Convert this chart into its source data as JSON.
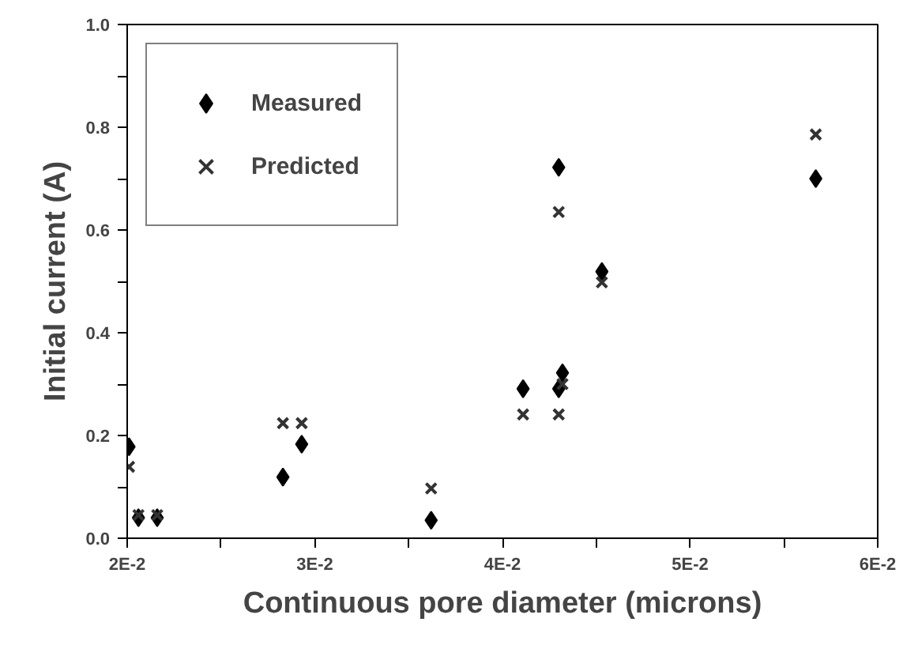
{
  "chart_data": {
    "type": "scatter",
    "xlabel": "Continuous pore diameter (microns)",
    "ylabel": "Initial current (A)",
    "xlim": [
      0.02,
      0.06
    ],
    "ylim": [
      0,
      1
    ],
    "xticks": [
      {
        "value": 0.02,
        "label": "2E-2"
      },
      {
        "value": 0.025,
        "label": null
      },
      {
        "value": 0.03,
        "label": "3E-2"
      },
      {
        "value": 0.035,
        "label": null
      },
      {
        "value": 0.04,
        "label": "4E-2"
      },
      {
        "value": 0.045,
        "label": null
      },
      {
        "value": 0.05,
        "label": "5E-2"
      },
      {
        "value": 0.055,
        "label": null
      },
      {
        "value": 0.06,
        "label": "6E-2"
      }
    ],
    "yticks": [
      {
        "value": 0,
        "label": "0.0"
      },
      {
        "value": 0.1,
        "label": null
      },
      {
        "value": 0.2,
        "label": "0.2"
      },
      {
        "value": 0.3,
        "label": null
      },
      {
        "value": 0.4,
        "label": "0.4"
      },
      {
        "value": 0.5,
        "label": null
      },
      {
        "value": 0.6,
        "label": "0.6"
      },
      {
        "value": 0.7,
        "label": null
      },
      {
        "value": 0.8,
        "label": "0.8"
      },
      {
        "value": 0.9,
        "label": null
      },
      {
        "value": 1,
        "label": "1.0"
      }
    ],
    "grid": false,
    "legend": "top left",
    "series": [
      {
        "name": "Measured",
        "color": "#000000",
        "marker": "diamond",
        "x": [
          0.0201,
          0.0206,
          0.0216,
          0.0283,
          0.0293,
          0.0362,
          0.0411,
          0.043,
          0.0432,
          0.043,
          0.0453,
          0.0567
        ],
        "values": [
          0.178,
          0.04,
          0.04,
          0.119,
          0.183,
          0.035,
          0.291,
          0.722,
          0.322,
          0.291,
          0.519,
          0.7
        ]
      },
      {
        "name": "Predicted",
        "color": "#333333",
        "marker": "cross",
        "x": [
          0.0201,
          0.0206,
          0.0216,
          0.0283,
          0.0293,
          0.0362,
          0.0411,
          0.043,
          0.0432,
          0.043,
          0.0453,
          0.0567
        ],
        "values": [
          0.139,
          0.045,
          0.045,
          0.224,
          0.224,
          0.097,
          0.241,
          0.635,
          0.3,
          0.241,
          0.498,
          0.786
        ]
      }
    ]
  }
}
